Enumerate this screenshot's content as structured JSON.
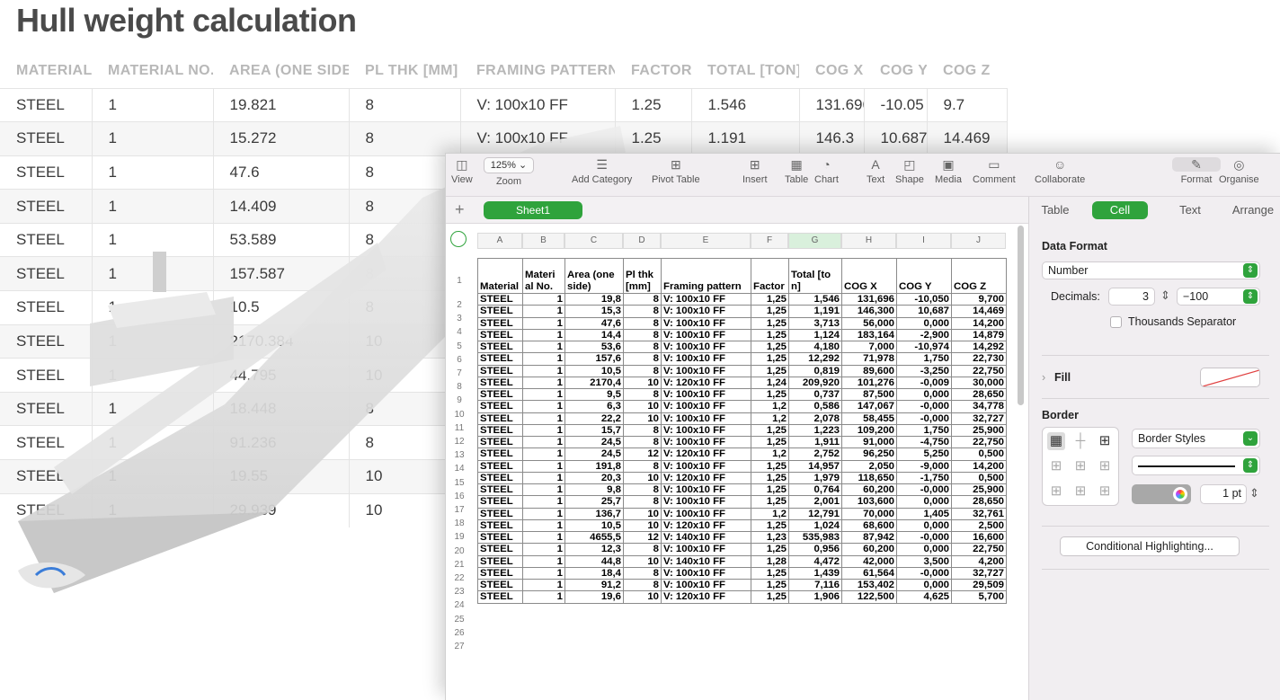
{
  "background_page": {
    "title": "Hull weight calculation",
    "columns": [
      "MATERIAL",
      "MATERIAL NO.",
      "AREA (ONE SIDE)",
      "PL THK [MM]",
      "FRAMING PATTERN",
      "FACTOR",
      "TOTAL [TON]",
      "COG X",
      "COG Y",
      "COG Z"
    ],
    "rows": [
      [
        "STEEL",
        "1",
        "19.821",
        "8",
        "V: 100x10 FF",
        "1.25",
        "1.546",
        "131.696",
        "-10.05",
        "9.7"
      ],
      [
        "STEEL",
        "1",
        "15.272",
        "8",
        "V: 100x10 FF",
        "1.25",
        "1.191",
        "146.3",
        "10.687",
        "14.469"
      ],
      [
        "STEEL",
        "1",
        "47.6",
        "8",
        "",
        "",
        "",
        "",
        "",
        ""
      ],
      [
        "STEEL",
        "1",
        "14.409",
        "8",
        "",
        "",
        "",
        "",
        "",
        ""
      ],
      [
        "STEEL",
        "1",
        "53.589",
        "8",
        "",
        "",
        "",
        "",
        "",
        ""
      ],
      [
        "STEEL",
        "1",
        "157.587",
        "8",
        "",
        "",
        "",
        "",
        "",
        ""
      ],
      [
        "STEEL",
        "1",
        "10.5",
        "8",
        "",
        "",
        "",
        "",
        "",
        ""
      ],
      [
        "STEEL",
        "1",
        "2170.384",
        "10",
        "",
        "",
        "",
        "",
        "",
        ""
      ],
      [
        "STEEL",
        "1",
        "44.795",
        "10",
        "",
        "",
        "",
        "",
        "",
        ""
      ],
      [
        "STEEL",
        "1",
        "18.448",
        "8",
        "",
        "",
        "",
        "",
        "",
        ""
      ],
      [
        "STEEL",
        "1",
        "91.236",
        "8",
        "",
        "",
        "",
        "",
        "",
        ""
      ],
      [
        "STEEL",
        "1",
        "19.55",
        "10",
        "",
        "",
        "",
        "",
        "",
        ""
      ],
      [
        "STEEL",
        "1",
        "29.939",
        "10",
        "",
        "",
        "",
        "",
        "",
        ""
      ]
    ]
  },
  "numbers": {
    "toolbar": [
      {
        "name": "view-button",
        "icon": "sidebar-icon",
        "glyph": "◫",
        "label": "View"
      },
      {
        "name": "zoom-button",
        "icon": "zoom-icon",
        "glyph": "",
        "label": "Zoom",
        "value": "125% ⌄"
      },
      {
        "name": "add-category-button",
        "icon": "list-icon",
        "glyph": "☰",
        "label": "Add Category"
      },
      {
        "name": "pivot-table-button",
        "icon": "pivot-table-icon",
        "glyph": "⊞",
        "label": "Pivot Table"
      },
      {
        "name": "insert-button",
        "icon": "insert-icon",
        "glyph": "⊞",
        "label": "Insert"
      },
      {
        "name": "table-button",
        "icon": "table-icon",
        "glyph": "▦",
        "label": "Table"
      },
      {
        "name": "chart-button",
        "icon": "chart-icon",
        "glyph": "◔",
        "label": "Chart"
      },
      {
        "name": "text-button",
        "icon": "text-icon",
        "glyph": "A",
        "label": "Text"
      },
      {
        "name": "shape-button",
        "icon": "shape-icon",
        "glyph": "◰",
        "label": "Shape"
      },
      {
        "name": "media-button",
        "icon": "media-icon",
        "glyph": "▣",
        "label": "Media"
      },
      {
        "name": "comment-button",
        "icon": "comment-icon",
        "glyph": "▭",
        "label": "Comment"
      },
      {
        "name": "collaborate-button",
        "icon": "collaborate-icon",
        "glyph": "☺",
        "label": "Collaborate"
      },
      {
        "name": "format-button",
        "icon": "format-brush-icon",
        "glyph": "✎",
        "label": "Format"
      },
      {
        "name": "organise-button",
        "icon": "organise-icon",
        "glyph": "◎",
        "label": "Organise"
      }
    ],
    "sheet_tab": "Sheet1",
    "add_sheet": "+",
    "column_letters": [
      "A",
      "B",
      "C",
      "D",
      "E",
      "F",
      "G",
      "H",
      "I",
      "J"
    ],
    "header_row": [
      "Material",
      "Materi al No.",
      "Area (one side)",
      "Pl thk [mm]",
      "Framing pattern",
      "Factor",
      "Total [ton]",
      "COG X",
      "COG Y",
      "COG Z"
    ],
    "rows": [
      [
        "STEEL",
        "1",
        "19,8",
        "8",
        "V: 100x10 FF",
        "1,25",
        "1,546",
        "131,696",
        "-10,050",
        "9,700"
      ],
      [
        "STEEL",
        "1",
        "15,3",
        "8",
        "V: 100x10 FF",
        "1,25",
        "1,191",
        "146,300",
        "10,687",
        "14,469"
      ],
      [
        "STEEL",
        "1",
        "47,6",
        "8",
        "V: 100x10 FF",
        "1,25",
        "3,713",
        "56,000",
        "0,000",
        "14,200"
      ],
      [
        "STEEL",
        "1",
        "14,4",
        "8",
        "V: 100x10 FF",
        "1,25",
        "1,124",
        "183,164",
        "-2,900",
        "14,879"
      ],
      [
        "STEEL",
        "1",
        "53,6",
        "8",
        "V: 100x10 FF",
        "1,25",
        "4,180",
        "7,000",
        "-10,974",
        "14,292"
      ],
      [
        "STEEL",
        "1",
        "157,6",
        "8",
        "V: 100x10 FF",
        "1,25",
        "12,292",
        "71,978",
        "1,750",
        "22,730"
      ],
      [
        "STEEL",
        "1",
        "10,5",
        "8",
        "V: 100x10 FF",
        "1,25",
        "0,819",
        "89,600",
        "-3,250",
        "22,750"
      ],
      [
        "STEEL",
        "1",
        "2170,4",
        "10",
        "V: 120x10 FF",
        "1,24",
        "209,920",
        "101,276",
        "-0,009",
        "30,000"
      ],
      [
        "STEEL",
        "1",
        "9,5",
        "8",
        "V: 100x10 FF",
        "1,25",
        "0,737",
        "87,500",
        "0,000",
        "28,650"
      ],
      [
        "STEEL",
        "1",
        "6,3",
        "10",
        "V: 100x10 FF",
        "1,2",
        "0,586",
        "147,067",
        "-0,000",
        "34,778"
      ],
      [
        "STEEL",
        "1",
        "22,2",
        "10",
        "V: 100x10 FF",
        "1,2",
        "2,078",
        "58,455",
        "-0,000",
        "32,727"
      ],
      [
        "STEEL",
        "1",
        "15,7",
        "8",
        "V: 100x10 FF",
        "1,25",
        "1,223",
        "109,200",
        "1,750",
        "25,900"
      ],
      [
        "STEEL",
        "1",
        "24,5",
        "8",
        "V: 100x10 FF",
        "1,25",
        "1,911",
        "91,000",
        "-4,750",
        "22,750"
      ],
      [
        "STEEL",
        "1",
        "24,5",
        "12",
        "V: 120x10 FF",
        "1,2",
        "2,752",
        "96,250",
        "5,250",
        "0,500"
      ],
      [
        "STEEL",
        "1",
        "191,8",
        "8",
        "V: 100x10 FF",
        "1,25",
        "14,957",
        "2,050",
        "-9,000",
        "14,200"
      ],
      [
        "STEEL",
        "1",
        "20,3",
        "10",
        "V: 120x10 FF",
        "1,25",
        "1,979",
        "118,650",
        "-1,750",
        "0,500"
      ],
      [
        "STEEL",
        "1",
        "9,8",
        "8",
        "V: 100x10 FF",
        "1,25",
        "0,764",
        "60,200",
        "-0,000",
        "25,900"
      ],
      [
        "STEEL",
        "1",
        "25,7",
        "8",
        "V: 100x10 FF",
        "1,25",
        "2,001",
        "103,600",
        "0,000",
        "28,650"
      ],
      [
        "STEEL",
        "1",
        "136,7",
        "10",
        "V: 100x10 FF",
        "1,2",
        "12,791",
        "70,000",
        "1,405",
        "32,761"
      ],
      [
        "STEEL",
        "1",
        "10,5",
        "10",
        "V: 120x10 FF",
        "1,25",
        "1,024",
        "68,600",
        "0,000",
        "2,500"
      ],
      [
        "STEEL",
        "1",
        "4655,5",
        "12",
        "V: 140x10 FF",
        "1,23",
        "535,983",
        "87,942",
        "-0,000",
        "16,600"
      ],
      [
        "STEEL",
        "1",
        "12,3",
        "8",
        "V: 100x10 FF",
        "1,25",
        "0,956",
        "60,200",
        "0,000",
        "22,750"
      ],
      [
        "STEEL",
        "1",
        "44,8",
        "10",
        "V: 140x10 FF",
        "1,28",
        "4,472",
        "42,000",
        "3,500",
        "4,200"
      ],
      [
        "STEEL",
        "1",
        "18,4",
        "8",
        "V: 100x10 FF",
        "1,25",
        "1,439",
        "61,564",
        "-0,000",
        "32,727"
      ],
      [
        "STEEL",
        "1",
        "91,2",
        "8",
        "V: 100x10 FF",
        "1,25",
        "7,116",
        "153,402",
        "0,000",
        "29,509"
      ],
      [
        "STEEL",
        "1",
        "19,6",
        "10",
        "V: 120x10 FF",
        "1,25",
        "1,906",
        "122,500",
        "4,625",
        "5,700"
      ]
    ],
    "inspector": {
      "tabs": [
        "Table",
        "Cell",
        "Text",
        "Arrange"
      ],
      "active_tab": "Cell",
      "data_format_label": "Data Format",
      "data_format_value": "Number",
      "decimals_label": "Decimals:",
      "decimals_value": "3",
      "negative_format": "−100",
      "thousands_label": "Thousands Separator",
      "fill_label": "Fill",
      "border_label": "Border",
      "border_styles": "Border Styles",
      "border_width": "1 pt",
      "conditional_button": "Conditional Highlighting..."
    }
  }
}
